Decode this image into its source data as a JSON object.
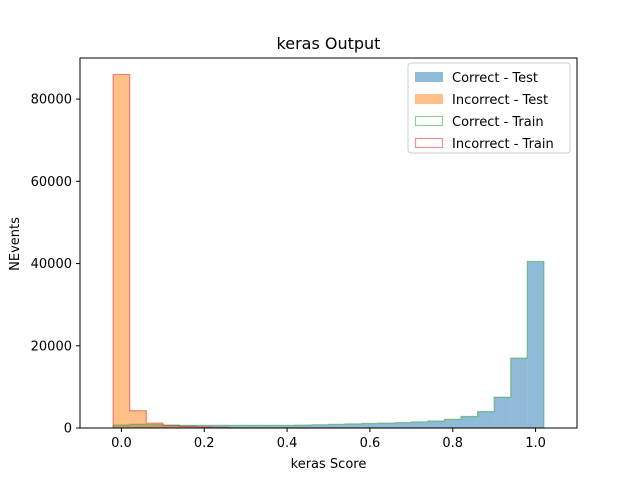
{
  "chart_data": {
    "type": "bar",
    "title": "keras Output",
    "xlabel": "keras Score",
    "ylabel": "NEvents",
    "xlim": [
      -0.1,
      1.1
    ],
    "ylim": [
      0,
      90000
    ],
    "xticks": [
      0.0,
      0.2,
      0.4,
      0.6,
      0.8,
      1.0
    ],
    "xtick_labels": [
      "0.0",
      "0.2",
      "0.4",
      "0.6",
      "0.8",
      "1.0"
    ],
    "yticks": [
      0,
      20000,
      40000,
      60000,
      80000
    ],
    "ytick_labels": [
      "0",
      "20000",
      "40000",
      "60000",
      "80000"
    ],
    "grid": false,
    "legend_position": "top-right",
    "bin_edges": [
      -0.02,
      0.02,
      0.06,
      0.1,
      0.14,
      0.18,
      0.22,
      0.26,
      0.3,
      0.34,
      0.38,
      0.42,
      0.46,
      0.5,
      0.54,
      0.58,
      0.62,
      0.66,
      0.7,
      0.74,
      0.78,
      0.82,
      0.86,
      0.9,
      0.94,
      0.98,
      1.02
    ],
    "series": [
      {
        "name": "Correct - Test",
        "style": "filled",
        "color": "#1f77b4",
        "opacity": 0.5,
        "values": [
          700,
          900,
          800,
          700,
          650,
          650,
          650,
          650,
          650,
          650,
          650,
          700,
          800,
          900,
          1000,
          1100,
          1200,
          1300,
          1500,
          1700,
          2100,
          2800,
          4000,
          7500,
          17000,
          40500
        ]
      },
      {
        "name": "Incorrect - Test",
        "style": "filled",
        "color": "#ff7f0e",
        "opacity": 0.5,
        "values": [
          86000,
          4200,
          1200,
          600,
          400,
          250,
          150,
          0,
          0,
          0,
          0,
          0,
          0,
          0,
          0,
          0,
          0,
          0,
          0,
          0,
          0,
          0,
          0,
          0,
          0,
          0
        ]
      },
      {
        "name": "Correct - Train",
        "style": "step",
        "color": "#2ca02c",
        "opacity": 0.5,
        "values": [
          700,
          900,
          800,
          700,
          650,
          650,
          650,
          650,
          650,
          650,
          650,
          700,
          800,
          900,
          1000,
          1100,
          1200,
          1300,
          1500,
          1700,
          2100,
          2800,
          4000,
          7500,
          17000,
          40500
        ]
      },
      {
        "name": "Incorrect - Train",
        "style": "step",
        "color": "#d62728",
        "opacity": 0.5,
        "values": [
          86000,
          4200,
          1200,
          600,
          400,
          250,
          150,
          0,
          0,
          0,
          0,
          0,
          0,
          0,
          0,
          0,
          0,
          0,
          0,
          0,
          0,
          0,
          0,
          0,
          0,
          0
        ]
      }
    ]
  }
}
